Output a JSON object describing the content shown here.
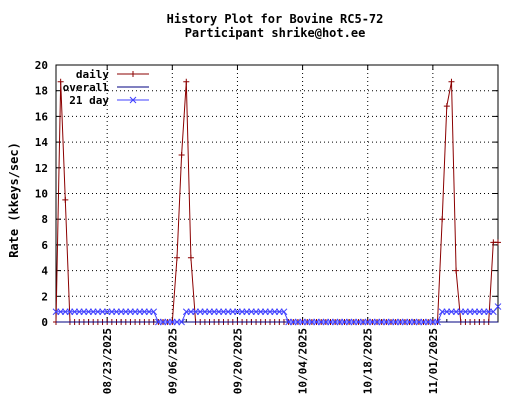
{
  "chart_data": {
    "type": "line",
    "title": "History Plot for Bovine RC5-72",
    "subtitle": "Participant shrike@hot.ee",
    "ylabel": "Rate (kkeys/sec)",
    "xlabel": "",
    "ylim": [
      0,
      20
    ],
    "xlim": [
      "2025-08-12",
      "2025-11-15"
    ],
    "y_ticks": [
      0,
      2,
      4,
      6,
      8,
      10,
      12,
      14,
      16,
      18,
      20
    ],
    "x_ticks": [
      "08/23/2025",
      "09/06/2025",
      "09/20/2025",
      "10/04/2025",
      "10/18/2025",
      "11/01/2025"
    ],
    "x_tick_dates": [
      "2025-08-23",
      "2025-09-06",
      "2025-09-20",
      "2025-10-04",
      "2025-10-18",
      "2025-11-01"
    ],
    "grid": true,
    "legend_position": "top-left",
    "colors": {
      "daily": "#8b0000",
      "overall": "#000080",
      "21 day": "#4040ff",
      "grid": "#000000",
      "axis": "#000000"
    },
    "series": [
      {
        "name": "daily",
        "marker": "plus",
        "points": [
          [
            "2025-08-12",
            0
          ],
          [
            "2025-08-13",
            18.7
          ],
          [
            "2025-08-14",
            9.5
          ],
          [
            "2025-08-15",
            0
          ],
          [
            "2025-09-06",
            0
          ],
          [
            "2025-09-07",
            5
          ],
          [
            "2025-09-08",
            13
          ],
          [
            "2025-09-09",
            18.7
          ],
          [
            "2025-09-10",
            5
          ],
          [
            "2025-09-11",
            0
          ],
          [
            "2025-11-02",
            0
          ],
          [
            "2025-11-03",
            8
          ],
          [
            "2025-11-04",
            16.8
          ],
          [
            "2025-11-05",
            18.7
          ],
          [
            "2025-11-06",
            4
          ],
          [
            "2025-11-07",
            0
          ],
          [
            "2025-11-13",
            0
          ],
          [
            "2025-11-14",
            6.2
          ],
          [
            "2025-11-15",
            6.2
          ]
        ]
      },
      {
        "name": "overall",
        "marker": "none",
        "points": [
          [
            "2025-08-12",
            0
          ],
          [
            "2025-11-15",
            0
          ]
        ]
      },
      {
        "name": "21 day",
        "marker": "x",
        "points": [
          [
            "2025-08-12",
            0.8
          ],
          [
            "2025-09-02",
            0.8
          ],
          [
            "2025-09-03",
            0
          ],
          [
            "2025-09-08",
            0
          ],
          [
            "2025-09-09",
            0.8
          ],
          [
            "2025-09-30",
            0.8
          ],
          [
            "2025-10-01",
            0
          ],
          [
            "2025-11-02",
            0
          ],
          [
            "2025-11-03",
            0.8
          ],
          [
            "2025-11-14",
            0.8
          ],
          [
            "2025-11-15",
            1.2
          ]
        ]
      }
    ]
  }
}
